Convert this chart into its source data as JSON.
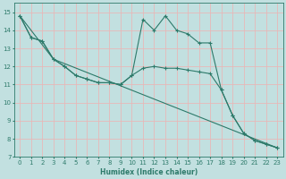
{
  "background_color": "#c2e0e0",
  "grid_color": "#e8b8b8",
  "line_color": "#2d7a6a",
  "xlabel": "Humidex (Indice chaleur)",
  "xlim": [
    -0.5,
    23.5
  ],
  "ylim": [
    7,
    15.5
  ],
  "yticks": [
    7,
    8,
    9,
    10,
    11,
    12,
    13,
    14,
    15
  ],
  "xticks": [
    0,
    1,
    2,
    3,
    4,
    5,
    6,
    7,
    8,
    9,
    10,
    11,
    12,
    13,
    14,
    15,
    16,
    17,
    18,
    19,
    20,
    21,
    22,
    23
  ],
  "series1_x": [
    0,
    1,
    2,
    3,
    4,
    5,
    6,
    7,
    8,
    9,
    10,
    11,
    12,
    13,
    14,
    15,
    16,
    17,
    18,
    19,
    20,
    21,
    22,
    23
  ],
  "series1_y": [
    14.8,
    13.6,
    13.4,
    12.4,
    12.0,
    11.5,
    11.3,
    11.1,
    11.1,
    11.0,
    11.5,
    14.6,
    14.0,
    14.8,
    14.0,
    13.8,
    13.3,
    13.3,
    10.7,
    9.3,
    8.3,
    7.9,
    7.7,
    7.5
  ],
  "series2_x": [
    0,
    1,
    2,
    3,
    4,
    5,
    6,
    7,
    8,
    9,
    10,
    11,
    12,
    13,
    14,
    15,
    16,
    17,
    18,
    19,
    20,
    21,
    22,
    23
  ],
  "series2_y": [
    14.8,
    13.6,
    13.4,
    12.4,
    12.0,
    11.5,
    11.3,
    11.1,
    11.1,
    11.0,
    11.5,
    11.9,
    12.0,
    11.9,
    11.9,
    11.8,
    11.7,
    11.6,
    10.7,
    9.3,
    8.3,
    7.9,
    7.7,
    7.5
  ],
  "series3_x": [
    0,
    3,
    23
  ],
  "series3_y": [
    14.8,
    12.4,
    7.5
  ]
}
